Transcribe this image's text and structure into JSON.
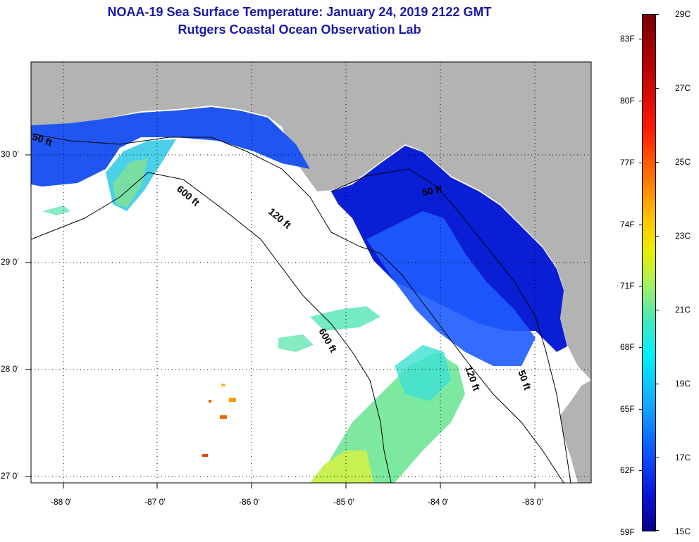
{
  "title": {
    "line1": "NOAA-19 Sea Surface Temperature:  January 24, 2019 2122 GMT",
    "line2": "Rutgers Coastal Ocean Observation Lab"
  },
  "map": {
    "x_labels": [
      "-88 0'",
      "-87 0'",
      "-86 0'",
      "-85 0'",
      "-84 0'",
      "-83 0'"
    ],
    "y_labels": [
      "30 0'",
      "29 0'",
      "28 0'",
      "27 0'"
    ],
    "contours": [
      {
        "label": "50 ft",
        "depth_ft": 50
      },
      {
        "label": "120 ft",
        "depth_ft": 120
      },
      {
        "label": "600 ft",
        "depth_ft": 600
      },
      {
        "label": "600 ft",
        "depth_ft": 600
      },
      {
        "label": "50 ft",
        "depth_ft": 50
      },
      {
        "label": "120 ft",
        "depth_ft": 120
      },
      {
        "label": "50 ft",
        "depth_ft": 50
      }
    ],
    "colors": {
      "land": "#b3b3b3",
      "no_data": "#ffffff",
      "grid": "#000000"
    }
  },
  "colorbar": {
    "fahrenheit": [
      "83F",
      "80F",
      "77F",
      "74F",
      "71F",
      "68F",
      "65F",
      "62F",
      "59F"
    ],
    "celsius": [
      "29C",
      "27C",
      "25C",
      "23C",
      "21C",
      "19C",
      "17C",
      "15C"
    ],
    "range_c": [
      15,
      29
    ]
  }
}
